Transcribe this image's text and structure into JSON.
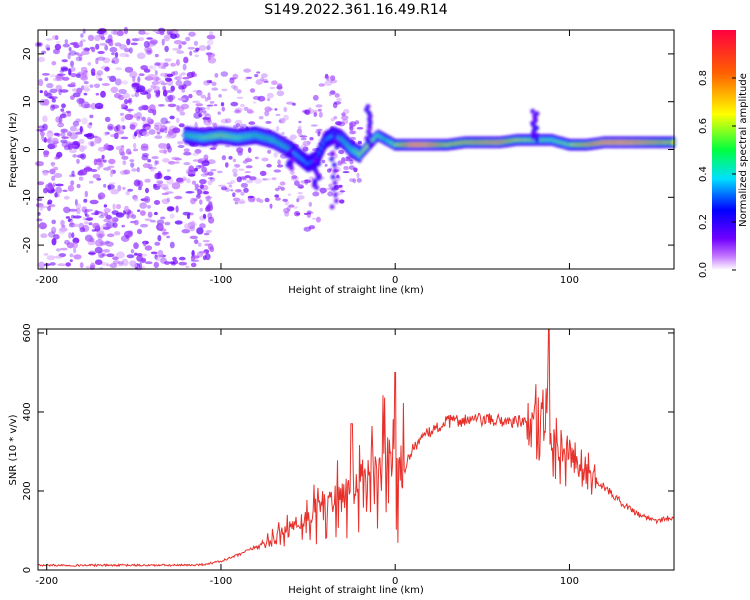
{
  "figure_title": "S149.2022.361.16.49.R14",
  "chart_data": [
    {
      "type": "heatmap",
      "title": "",
      "xlabel": "Height of straight line (km)",
      "ylabel": "Frequency (Hz)",
      "xlim": [
        -205,
        160
      ],
      "ylim": [
        -25,
        25
      ],
      "xticks": [
        -200,
        -100,
        0,
        100
      ],
      "yticks": [
        -20,
        -10,
        0,
        10,
        20
      ],
      "grid": false,
      "colorbar": {
        "label": "Normalized spectral amplitude",
        "range": [
          0,
          1
        ],
        "ticks": [
          "0.0",
          "0.2",
          "0.4",
          "0.6",
          "0.8"
        ],
        "colors": [
          "#ffffff",
          "#c070ff",
          "#7000ff",
          "#0000ff",
          "#00e0ff",
          "#00ff40",
          "#ffff00",
          "#ff6000",
          "#ff0040"
        ]
      },
      "ridge": {
        "x": [
          -120,
          -110,
          -100,
          -90,
          -80,
          -70,
          -60,
          -50,
          -45,
          -40,
          -35,
          -30,
          -25,
          -20,
          -15,
          -10,
          -5,
          0,
          10,
          20,
          30,
          40,
          50,
          60,
          70,
          80,
          90,
          100,
          110,
          120,
          130,
          140,
          150,
          160
        ],
        "frequency": [
          3,
          2.5,
          3,
          2.5,
          3,
          2,
          0,
          -3,
          -2,
          2,
          3,
          2,
          0,
          -1,
          1,
          3,
          2,
          1,
          1,
          1,
          1,
          1.5,
          1.5,
          1.5,
          2,
          2,
          2,
          1,
          1,
          1.5,
          1.5,
          1.5,
          1.5,
          1.5
        ],
        "amplitude": [
          0.5,
          0.55,
          0.6,
          0.55,
          0.5,
          0.5,
          0.45,
          0.35,
          0.3,
          0.35,
          0.4,
          0.45,
          0.5,
          0.6,
          0.65,
          0.55,
          0.5,
          0.6,
          0.95,
          0.9,
          0.7,
          0.75,
          0.8,
          0.85,
          0.65,
          0.6,
          0.55,
          0.6,
          0.8,
          0.9,
          0.92,
          0.88,
          0.8,
          0.7
        ]
      }
    },
    {
      "type": "line",
      "title": "",
      "xlabel": "Height of straight line (km)",
      "ylabel": "SNR (10 * v/v)",
      "xlim": [
        -205,
        160
      ],
      "ylim": [
        0,
        610
      ],
      "xticks": [
        -200,
        -100,
        0,
        100
      ],
      "yticks": [
        0,
        200,
        400,
        600
      ],
      "grid": false,
      "series": [
        {
          "color": "#e8302a",
          "x": [
            -205,
            -180,
            -160,
            -140,
            -120,
            -110,
            -100,
            -90,
            -80,
            -70,
            -60,
            -50,
            -40,
            -30,
            -25,
            -20,
            -15,
            -10,
            -5,
            0,
            5,
            10,
            20,
            30,
            40,
            50,
            60,
            70,
            80,
            85,
            90,
            95,
            100,
            110,
            120,
            130,
            140,
            150,
            160
          ],
          "values": [
            12,
            12,
            12,
            12,
            12,
            14,
            22,
            38,
            58,
            80,
            105,
            135,
            160,
            190,
            210,
            225,
            240,
            270,
            280,
            260,
            250,
            310,
            350,
            375,
            380,
            380,
            378,
            375,
            370,
            380,
            360,
            320,
            290,
            250,
            210,
            170,
            140,
            125,
            135
          ]
        }
      ],
      "peaks": [
        {
          "x": -25,
          "y": 370
        },
        {
          "x": 0,
          "y": 500
        },
        {
          "x": 88,
          "y": 610
        }
      ]
    }
  ]
}
